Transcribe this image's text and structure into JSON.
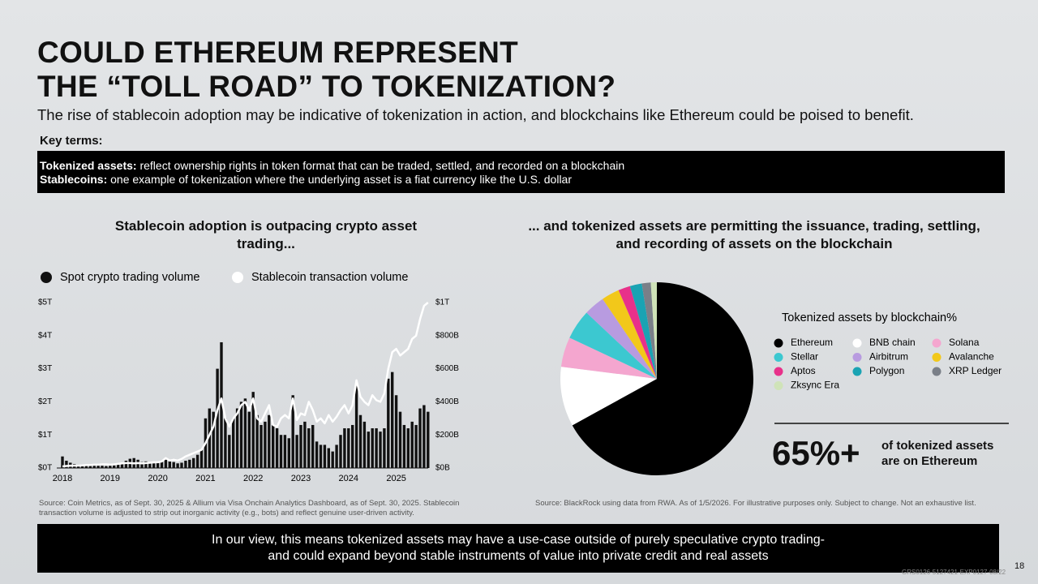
{
  "header": {
    "title_lines": [
      "COULD ETHEREUM REPRESENT",
      "THE “TOLL ROAD” TO TOKENIZATION?"
    ],
    "subtitle": "The rise of stablecoin adoption may be indicative of tokenization in action, and blockchains like Ethereum could be poised to benefit."
  },
  "key_terms": {
    "label": "Key terms:",
    "items": [
      {
        "term": "Tokenized assets:",
        "definition": "reflect ownership rights in token format that can be traded, settled, and recorded on a blockchain"
      },
      {
        "term": "Stablecoins:",
        "definition": "one example of tokenization where the underlying asset is a fiat currency like the U.S. dollar"
      }
    ]
  },
  "chart_data": [
    {
      "type": "bar",
      "title": "Stablecoin adoption is outpacing crypto asset trading...",
      "categories": [
        "2018",
        null,
        null,
        null,
        null,
        null,
        null,
        null,
        null,
        null,
        null,
        null,
        "2019",
        null,
        null,
        null,
        null,
        null,
        null,
        null,
        null,
        null,
        null,
        null,
        "2020",
        null,
        null,
        null,
        null,
        null,
        null,
        null,
        null,
        null,
        null,
        null,
        "2021",
        null,
        null,
        null,
        null,
        null,
        null,
        null,
        null,
        null,
        null,
        null,
        "2022",
        null,
        null,
        null,
        null,
        null,
        null,
        null,
        null,
        null,
        null,
        null,
        "2023",
        null,
        null,
        null,
        null,
        null,
        null,
        null,
        null,
        null,
        null,
        null,
        "2024",
        null,
        null,
        null,
        null,
        null,
        null,
        null,
        null,
        null,
        null,
        null,
        "2025",
        null,
        null,
        null,
        null,
        null,
        null,
        null,
        null
      ],
      "series": [
        {
          "name": "Spot crypto trading volume",
          "color": "#111111",
          "type": "bar",
          "values": [
            0.35,
            0.22,
            0.16,
            0.12,
            0.1,
            0.09,
            0.08,
            0.08,
            0.07,
            0.07,
            0.07,
            0.06,
            0.07,
            0.08,
            0.1,
            0.15,
            0.22,
            0.28,
            0.3,
            0.25,
            0.18,
            0.2,
            0.15,
            0.14,
            0.15,
            0.18,
            0.25,
            0.2,
            0.18,
            0.14,
            0.16,
            0.22,
            0.25,
            0.3,
            0.4,
            0.55,
            1.5,
            1.8,
            1.7,
            3.0,
            3.8,
            1.5,
            1.0,
            1.5,
            1.8,
            2.0,
            2.1,
            1.7,
            2.3,
            1.6,
            1.3,
            1.4,
            1.6,
            1.3,
            1.2,
            1.0,
            1.0,
            0.9,
            2.2,
            1.0,
            1.3,
            1.4,
            1.2,
            1.3,
            0.8,
            0.7,
            0.7,
            0.6,
            0.5,
            0.7,
            1.0,
            1.2,
            1.2,
            1.3,
            2.5,
            1.6,
            1.4,
            1.1,
            1.2,
            1.2,
            1.1,
            1.2,
            2.7,
            2.9,
            2.2,
            1.7,
            1.3,
            1.2,
            1.4,
            1.3,
            1.8,
            1.9,
            1.7
          ]
        },
        {
          "name": "Stablecoin transaction volume",
          "color": "#ffffff",
          "type": "line",
          "axis": "y2",
          "values": [
            10,
            12,
            14,
            15,
            15,
            16,
            18,
            18,
            20,
            20,
            22,
            22,
            20,
            22,
            25,
            28,
            30,
            30,
            28,
            30,
            28,
            30,
            32,
            35,
            35,
            40,
            60,
            45,
            50,
            45,
            55,
            70,
            80,
            90,
            100,
            110,
            150,
            200,
            250,
            350,
            420,
            300,
            250,
            300,
            330,
            380,
            400,
            350,
            420,
            300,
            280,
            330,
            380,
            260,
            250,
            300,
            320,
            300,
            420,
            290,
            330,
            320,
            400,
            350,
            280,
            300,
            270,
            320,
            280,
            310,
            350,
            380,
            330,
            380,
            530,
            430,
            400,
            380,
            440,
            410,
            400,
            450,
            600,
            700,
            720,
            680,
            700,
            720,
            780,
            800,
            900,
            980,
            1000
          ]
        }
      ],
      "ylim": [
        0,
        5
      ],
      "yticks": [
        {
          "value": 0,
          "label": "$0T"
        },
        {
          "value": 1,
          "label": "$1T"
        },
        {
          "value": 2,
          "label": "$2T"
        },
        {
          "value": 3,
          "label": "$3T"
        },
        {
          "value": 4,
          "label": "$4T"
        },
        {
          "value": 5,
          "label": "$5T"
        }
      ],
      "y2lim": [
        0,
        1000
      ],
      "y2ticks": [
        {
          "value": 0,
          "label": "$0B"
        },
        {
          "value": 200,
          "label": "$200B"
        },
        {
          "value": 400,
          "label": "$400B"
        },
        {
          "value": 600,
          "label": "$600B"
        },
        {
          "value": 800,
          "label": "$800B"
        },
        {
          "value": 1000,
          "label": "$1T"
        }
      ],
      "grid": false,
      "source": "Source: Coin Metrics, as of Sept. 30, 2025 & Allium via Visa Onchain Analytics Dashboard, as of Sept. 30, 2025. Stablecoin transaction volume is adjusted to strip out inorganic activity (e.g., bots) and reflect genuine user-driven activity."
    },
    {
      "type": "pie",
      "title": "... and  tokenized assets are permitting the issuance, trading, settling, and recording of assets on the blockchain",
      "legend_title": "Tokenized assets by blockchain%",
      "categories": [
        "Ethereum",
        "BNB chain",
        "Solana",
        "Stellar",
        "Airbitrum",
        "Avalanche",
        "Aptos",
        "Polygon",
        "XRP Ledger",
        "Zksync Era"
      ],
      "values": [
        67,
        10,
        5,
        5,
        3.5,
        3,
        2,
        2,
        1.5,
        1
      ],
      "colors": [
        "#000000",
        "#ffffff",
        "#f4a6cf",
        "#3cc8d0",
        "#b89be0",
        "#f2c81a",
        "#e8318a",
        "#1aa3b3",
        "#7a7f88",
        "#cfe3b8"
      ],
      "source": "Source: BlackRock using data from RWA. As of 1/5/2026. For illustrative purposes only. Subject to change. Not an exhaustive list."
    }
  ],
  "callout": {
    "value": "65%+",
    "text_lines": [
      "of tokenized assets",
      "are on Ethereum"
    ]
  },
  "footer": {
    "lines": [
      "In our view, this means tokenized assets may have a use-case outside of purely speculative crypto trading-",
      "and could expand beyond stable instruments of value into private credit and real assets"
    ],
    "page_number": "18",
    "code": "GRS0126-5127421-EXP0127-08/22"
  }
}
